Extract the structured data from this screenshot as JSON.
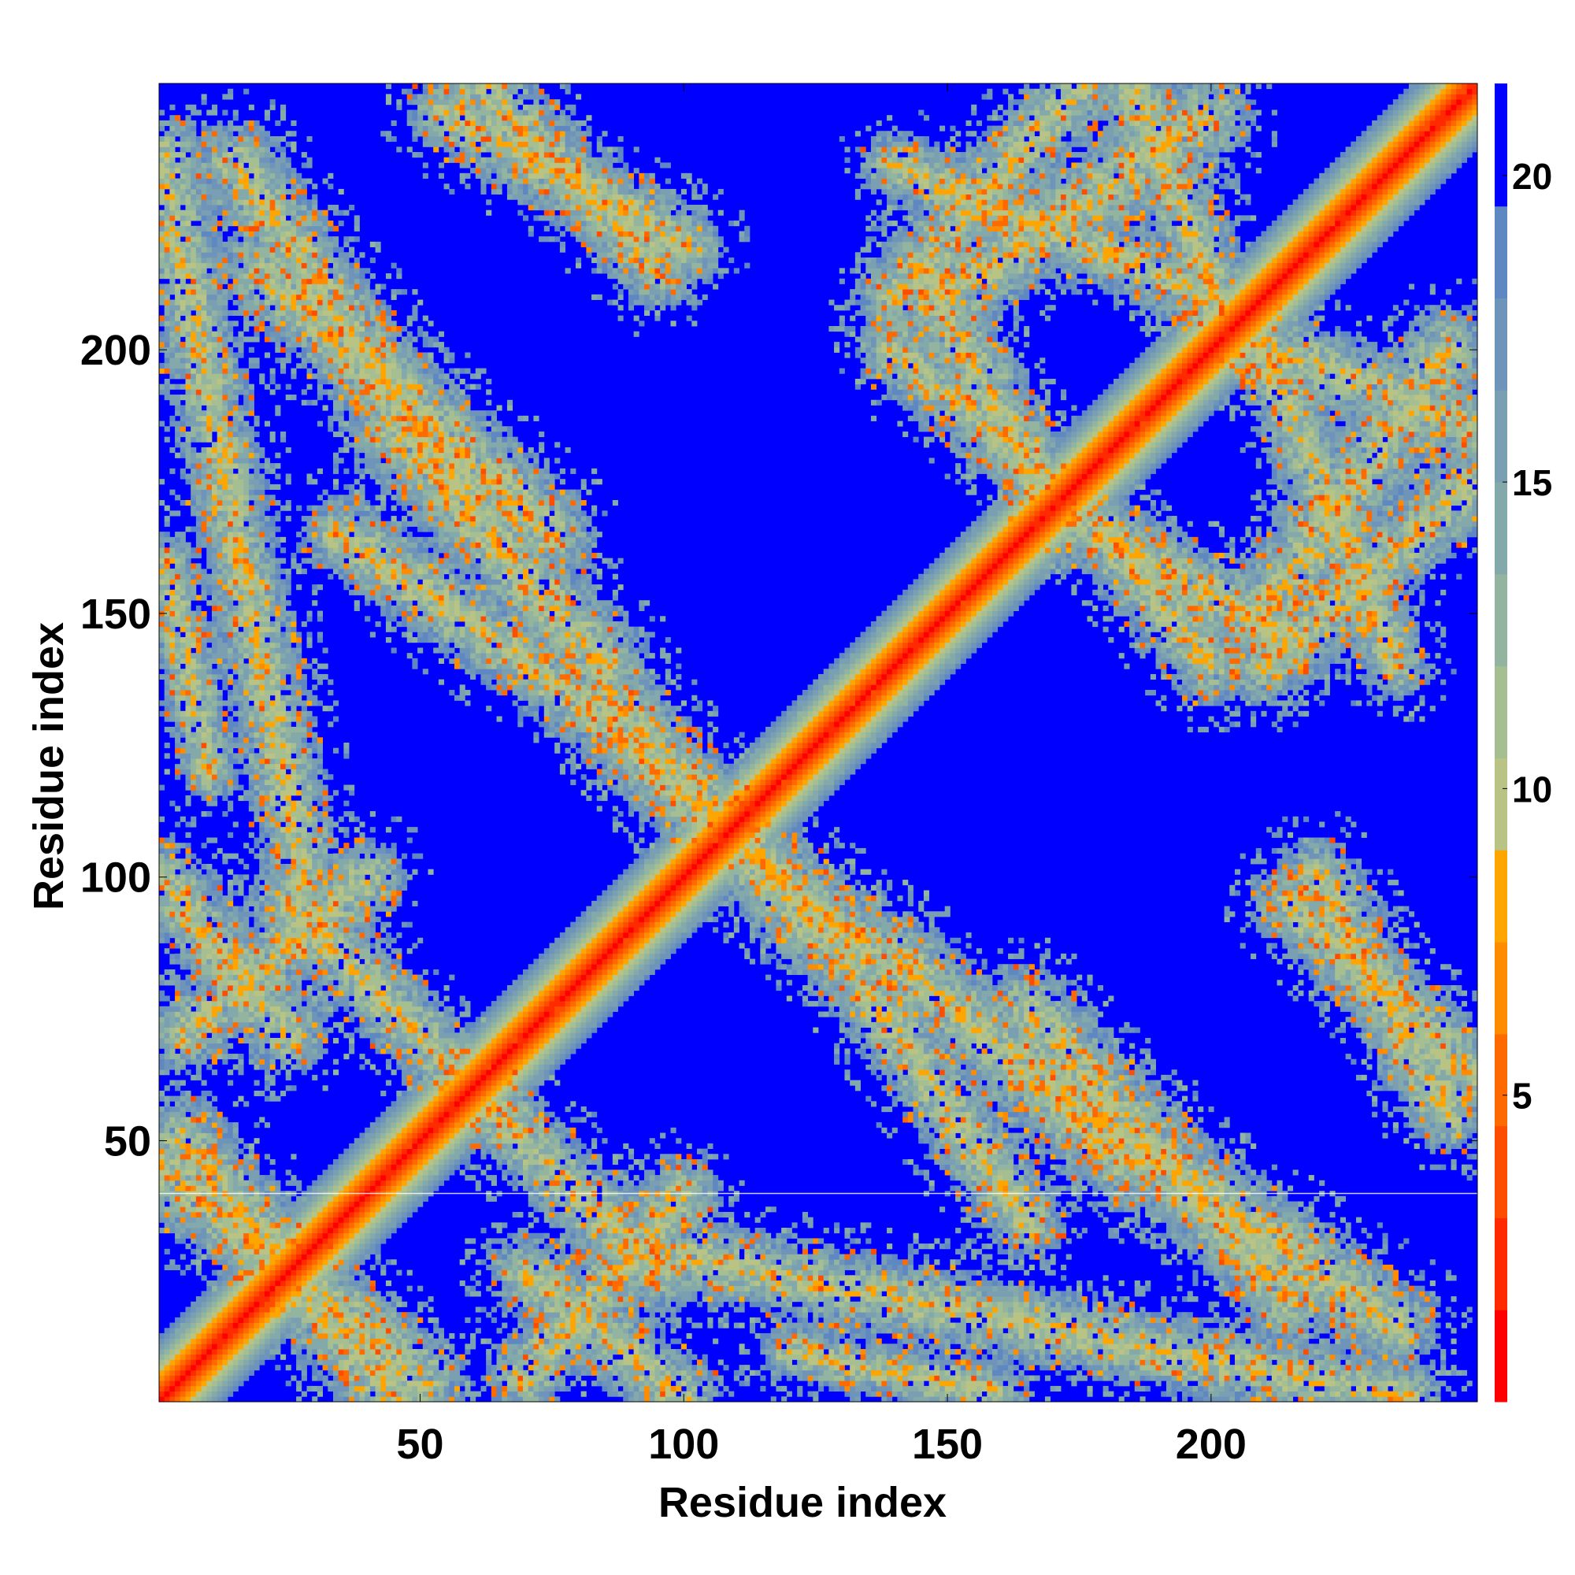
{
  "chart_data": {
    "type": "heatmap",
    "title": "",
    "xlabel": "Residue index",
    "ylabel": "Residue index",
    "n_residues": 250,
    "xlim": [
      0.5,
      250.5
    ],
    "ylim": [
      0.5,
      250.5
    ],
    "x_ticks": [
      50,
      100,
      150,
      200
    ],
    "y_ticks": [
      50,
      100,
      150,
      200
    ],
    "colorbar": {
      "range": [
        0,
        21.5
      ],
      "ticks": [
        5,
        10,
        15,
        20
      ],
      "levels": [
        {
          "upper": 1.5,
          "color": "#ff0000"
        },
        {
          "upper": 3.0,
          "color": "#ff2a00"
        },
        {
          "upper": 4.5,
          "color": "#ff4d00"
        },
        {
          "upper": 6.0,
          "color": "#ff6a00"
        },
        {
          "upper": 7.5,
          "color": "#ff8c00"
        },
        {
          "upper": 9.0,
          "color": "#ffa500"
        },
        {
          "upper": 10.5,
          "color": "#b9c484"
        },
        {
          "upper": 12.0,
          "color": "#a5bf92"
        },
        {
          "upper": 13.5,
          "color": "#93b5a0"
        },
        {
          "upper": 15.0,
          "color": "#84a9aa"
        },
        {
          "upper": 16.5,
          "color": "#7a9fb2"
        },
        {
          "upper": 18.0,
          "color": "#6f94ba"
        },
        {
          "upper": 19.5,
          "color": "#5f88c2"
        },
        {
          "upper": 21.5,
          "color": "#0000ff"
        }
      ]
    },
    "diagonal_band_halfwidth": 12,
    "background_value": 21,
    "contact_bands": [
      {
        "x": [
          1,
          28
        ],
        "y": [
          237,
          100
        ],
        "width": 8
      },
      {
        "x": [
          20,
          75
        ],
        "y": [
          215,
          165
        ],
        "width": 9
      },
      {
        "x": [
          55,
          100
        ],
        "y": [
          245,
          220
        ],
        "width": 8
      },
      {
        "x": [
          35,
          85
        ],
        "y": [
          165,
          130
        ],
        "width": 8
      },
      {
        "x": [
          85,
          125
        ],
        "y": [
          135,
          90
        ],
        "width": 9
      },
      {
        "x": [
          1,
          25
        ],
        "y": [
          100,
          70
        ],
        "width": 8
      },
      {
        "x": [
          25,
          60
        ],
        "y": [
          95,
          60
        ],
        "width": 8
      },
      {
        "x": [
          1,
          50
        ],
        "y": [
          45,
          5
        ],
        "width": 9
      },
      {
        "x": [
          70,
          100
        ],
        "y": [
          5,
          40
        ],
        "width": 8
      },
      {
        "x": [
          120,
          160
        ],
        "y": [
          10,
          2
        ],
        "width": 6
      },
      {
        "x": [
          140,
          185
        ],
        "y": [
          85,
          45
        ],
        "width": 9
      },
      {
        "x": [
          170,
          235
        ],
        "y": [
          60,
          15
        ],
        "width": 9
      },
      {
        "x": [
          215,
          250
        ],
        "y": [
          95,
          62
        ],
        "width": 8
      },
      {
        "x": [
          150,
          200
        ],
        "y": [
          210,
          245
        ],
        "width": 9
      },
      {
        "x": [
          140,
          165
        ],
        "y": [
          200,
          180
        ],
        "width": 8
      },
      {
        "x": [
          170,
          215
        ],
        "y": [
          170,
          145
        ],
        "width": 8
      },
      {
        "x": [
          210,
          250
        ],
        "y": [
          140,
          175
        ],
        "width": 8
      },
      {
        "x": [
          200,
          250
        ],
        "y": [
          205,
          185
        ],
        "width": 8
      },
      {
        "x": [
          140,
          200
        ],
        "y": [
          235,
          210
        ],
        "width": 7
      }
    ],
    "artifact_line_y": 40
  }
}
